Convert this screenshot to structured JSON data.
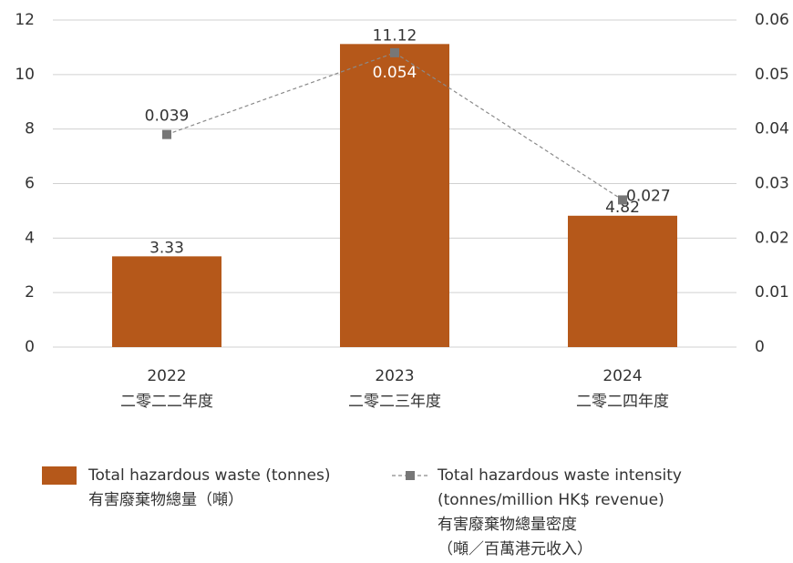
{
  "chart_data": {
    "type": "bar",
    "categories": [
      "2022",
      "2023",
      "2024"
    ],
    "categories_zh": [
      "二零二二年度",
      "二零二三年度",
      "二零二四年度"
    ],
    "series": [
      {
        "name": [
          "Total hazardous waste (tonnes)",
          "有害廢棄物總量（噸）"
        ],
        "type": "bar",
        "color": "#b5581a",
        "values": [
          3.33,
          11.12,
          4.82
        ]
      },
      {
        "name": [
          "Total hazardous waste intensity",
          "(tonnes/million HK$ revenue)",
          "有害廢棄物總量密度",
          "（噸／百萬港元收入）"
        ],
        "type": "line",
        "axis": "y2",
        "color": "#8a8a8a",
        "values": [
          0.039,
          0.054,
          0.027
        ]
      }
    ],
    "ylim": [
      0,
      12
    ],
    "yticks": [
      0,
      2,
      4,
      6,
      8,
      10,
      12
    ],
    "y2lim": [
      0,
      0.06
    ],
    "y2ticks": [
      0,
      0.01,
      0.02,
      0.03,
      0.04,
      0.05,
      0.06
    ],
    "grid": true
  }
}
